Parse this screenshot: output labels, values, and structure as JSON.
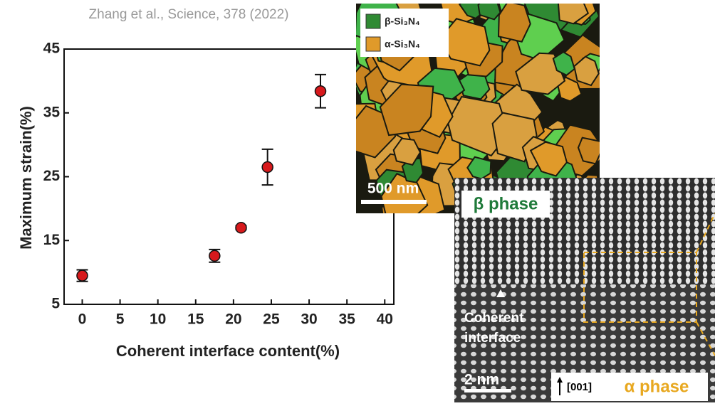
{
  "citation": "Zhang et al., Science, 378 (2022)",
  "chart_data": {
    "type": "scatter",
    "x_label": "Coherent interface content(%)",
    "y_label": "Maximum strain(%)",
    "x": [
      0,
      17.5,
      21,
      24.5,
      31.5
    ],
    "values": [
      9.5,
      12.6,
      17,
      26.5,
      38.4
    ],
    "errors": [
      0.9,
      1,
      0.3,
      2.8,
      2.6
    ],
    "color": "#d7191c",
    "xlim": [
      -2.4,
      41.2
    ],
    "ylim": [
      5,
      45
    ],
    "xticks": [
      0,
      5,
      10,
      15,
      20,
      25,
      30,
      35,
      40
    ],
    "yticks": [
      5,
      15,
      25,
      35,
      45
    ]
  },
  "micrograph": {
    "legend": [
      "β-Si₃N₄",
      "α-Si₃N₄"
    ],
    "scale_bar": "500 nm"
  },
  "hrtem": {
    "top_label": "β phase",
    "annotation": [
      "Coherent",
      "interface"
    ],
    "scale_bar": "2 nm",
    "direction": "[001]",
    "bottom_label": "α phase"
  }
}
